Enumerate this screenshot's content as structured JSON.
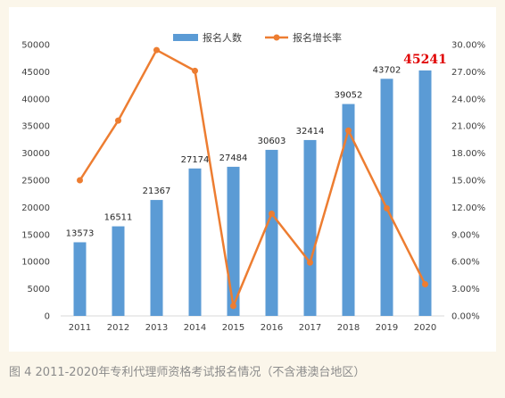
{
  "chart_data": {
    "type": "bar",
    "categories": [
      "2011",
      "2012",
      "2013",
      "2014",
      "2015",
      "2016",
      "2017",
      "2018",
      "2019",
      "2020"
    ],
    "series": [
      {
        "name": "报名人数",
        "kind": "bar",
        "axis": "left",
        "color": "#5b9bd5",
        "values": [
          13573,
          16511,
          21367,
          27174,
          27484,
          30603,
          32414,
          39052,
          43702,
          45241
        ],
        "labels": [
          "13573",
          "16511",
          "21367",
          "27174",
          "27484",
          "30603",
          "32414",
          "39052",
          "43702",
          "45241"
        ]
      },
      {
        "name": "报名增长率",
        "kind": "line",
        "axis": "right",
        "color": "#ed7d31",
        "values": [
          15.0,
          21.6,
          29.4,
          27.1,
          1.1,
          11.3,
          5.9,
          20.5,
          11.9,
          3.5
        ]
      }
    ],
    "highlight": {
      "index": 9,
      "color": "#e00000"
    },
    "y_left": {
      "min": 0,
      "max": 50000,
      "step": 5000,
      "ticks": [
        "0",
        "5000",
        "10000",
        "15000",
        "20000",
        "25000",
        "30000",
        "35000",
        "40000",
        "45000",
        "50000"
      ]
    },
    "y_right": {
      "min": 0,
      "max": 30,
      "step": 3,
      "ticks": [
        "0.00%",
        "3.00%",
        "6.00%",
        "9.00%",
        "12.00%",
        "15.00%",
        "18.00%",
        "21.00%",
        "24.00%",
        "27.00%",
        "30.00%"
      ]
    },
    "grid": false,
    "legend_position": "top"
  },
  "caption": "图 4 2011-2020年专利代理师资格考试报名情况（不含港澳台地区）"
}
